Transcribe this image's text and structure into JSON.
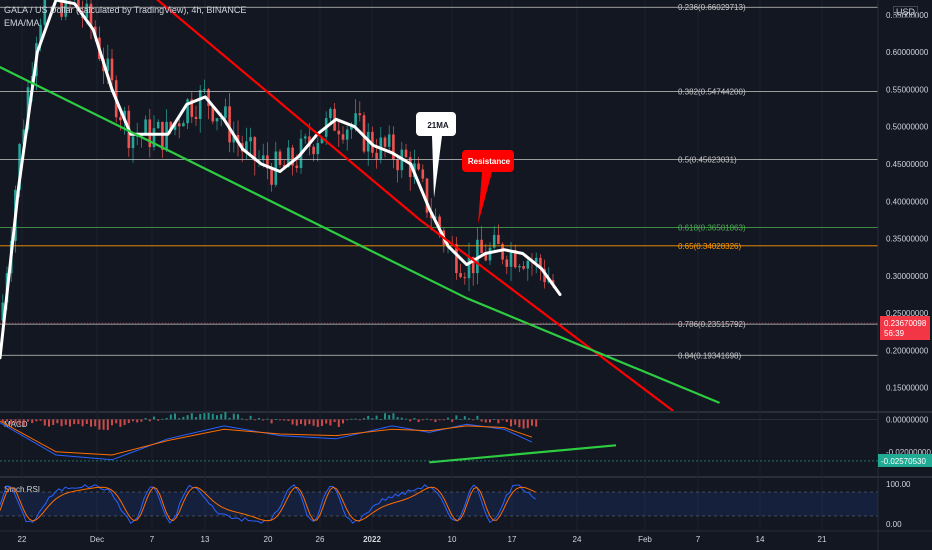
{
  "header": {
    "symbol_line": "GALA / US Dollar (calculated by TradingView), 4h, BINANCE",
    "indicator_line": "EMA/MA",
    "currency": "USD"
  },
  "chart_data": [
    {
      "type": "line",
      "pane": "price",
      "ylim": [
        0.12,
        0.67
      ],
      "yticks": [
        "0.65000000",
        "0.60000000",
        "0.55000000",
        "0.50000000",
        "0.45000000",
        "0.40000000",
        "0.35000000",
        "0.30000000",
        "0.25000000",
        "0.20000000",
        "0.15000000"
      ],
      "yvalues": [
        0.65,
        0.6,
        0.55,
        0.5,
        0.45,
        0.4,
        0.35,
        0.3,
        0.25,
        0.2,
        0.15
      ],
      "xticks": [
        "22",
        "Dec",
        "7",
        "13",
        "20",
        "26",
        "2022",
        "10",
        "17",
        "24",
        "Feb",
        "7",
        "14",
        "21"
      ],
      "fib_levels": [
        {
          "label": "0.236(0.66029713)",
          "value": 0.66029713,
          "color": "#c8c8c8"
        },
        {
          "label": "0.382(0.54744200)",
          "value": 0.547442,
          "color": "#c8c8c8"
        },
        {
          "label": "0.5(0.45623031)",
          "value": 0.45623031,
          "color": "#c8c8c8"
        },
        {
          "label": "0.618(0.36501863)",
          "value": 0.36501863,
          "color": "#4caf50"
        },
        {
          "label": "0.65(0.34028326)",
          "value": 0.34028326,
          "color": "#ff9800"
        },
        {
          "label": "0.786(0.23515792)",
          "value": 0.23515792,
          "color": "#c8c8c8"
        },
        {
          "label": "0.84(0.19341698)",
          "value": 0.19341698,
          "color": "#c8c8c8"
        }
      ],
      "series": [
        {
          "name": "21MA",
          "color": "#ffffff",
          "x": [
            0,
            2,
            4,
            6,
            8,
            10,
            12,
            14,
            16,
            18,
            20,
            22,
            24,
            26,
            28,
            30,
            32,
            34,
            36,
            38,
            40,
            42,
            44,
            46,
            48,
            50,
            52,
            54,
            56,
            58,
            60
          ],
          "y": [
            0.19,
            0.42,
            0.6,
            0.67,
            0.665,
            0.63,
            0.55,
            0.49,
            0.49,
            0.49,
            0.53,
            0.54,
            0.51,
            0.47,
            0.45,
            0.44,
            0.46,
            0.49,
            0.51,
            0.5,
            0.475,
            0.465,
            0.45,
            0.39,
            0.34,
            0.315,
            0.33,
            0.335,
            0.33,
            0.31,
            0.275
          ]
        },
        {
          "name": "",
          "color": "#ff0000",
          "x": [
            15,
            45,
            72
          ],
          "y": [
            0.69,
            0.375,
            0.12
          ]
        },
        {
          "name": "",
          "color": "#2ecc40",
          "x": [
            0,
            50,
            77
          ],
          "y": [
            0.58,
            0.27,
            0.13
          ]
        }
      ],
      "annotations": [
        {
          "text": "21MA",
          "bg": "#ffffff",
          "fg": "#131722"
        },
        {
          "text": "Resistance",
          "bg": "#ff0000",
          "fg": "#ffffff"
        }
      ],
      "last_price": {
        "label": "0.23670098",
        "countdown": "56:39",
        "color": "#f23645"
      }
    },
    {
      "type": "bar",
      "pane": "macd",
      "title": "MACD",
      "yticks": [
        "0.00000000",
        "-0.02000000"
      ],
      "yvalues": [
        0.0,
        -0.02
      ],
      "ylim": [
        -0.035,
        0.004
      ],
      "last_value": {
        "label": "-0.02570530",
        "value": -0.0257053,
        "color": "#22ab94"
      },
      "series": [
        {
          "name": "",
          "color": "#2962ff",
          "x": [
            0,
            6,
            12,
            18,
            24,
            30,
            36,
            42,
            46,
            50,
            54,
            57
          ],
          "y": [
            -0.002,
            -0.022,
            -0.025,
            -0.012,
            -0.004,
            -0.01,
            -0.012,
            -0.004,
            -0.008,
            -0.003,
            -0.006,
            -0.014
          ]
        },
        {
          "name": "",
          "color": "#ff6d00",
          "x": [
            0,
            6,
            12,
            18,
            24,
            30,
            36,
            42,
            46,
            50,
            54,
            57
          ],
          "y": [
            -0.001,
            -0.02,
            -0.022,
            -0.013,
            -0.006,
            -0.009,
            -0.01,
            -0.006,
            -0.007,
            -0.004,
            -0.005,
            -0.011
          ]
        },
        {
          "name": "",
          "color": "#2ecc40",
          "x": [
            46,
            66
          ],
          "y": [
            -0.0265,
            -0.016
          ]
        }
      ]
    },
    {
      "type": "line",
      "pane": "stoch",
      "title": "Stoch RSI",
      "yticks": [
        "100.00",
        "0.00"
      ],
      "yvalues": [
        100,
        0
      ],
      "bands": [
        80,
        20
      ],
      "ylim": [
        0,
        100
      ]
    }
  ]
}
